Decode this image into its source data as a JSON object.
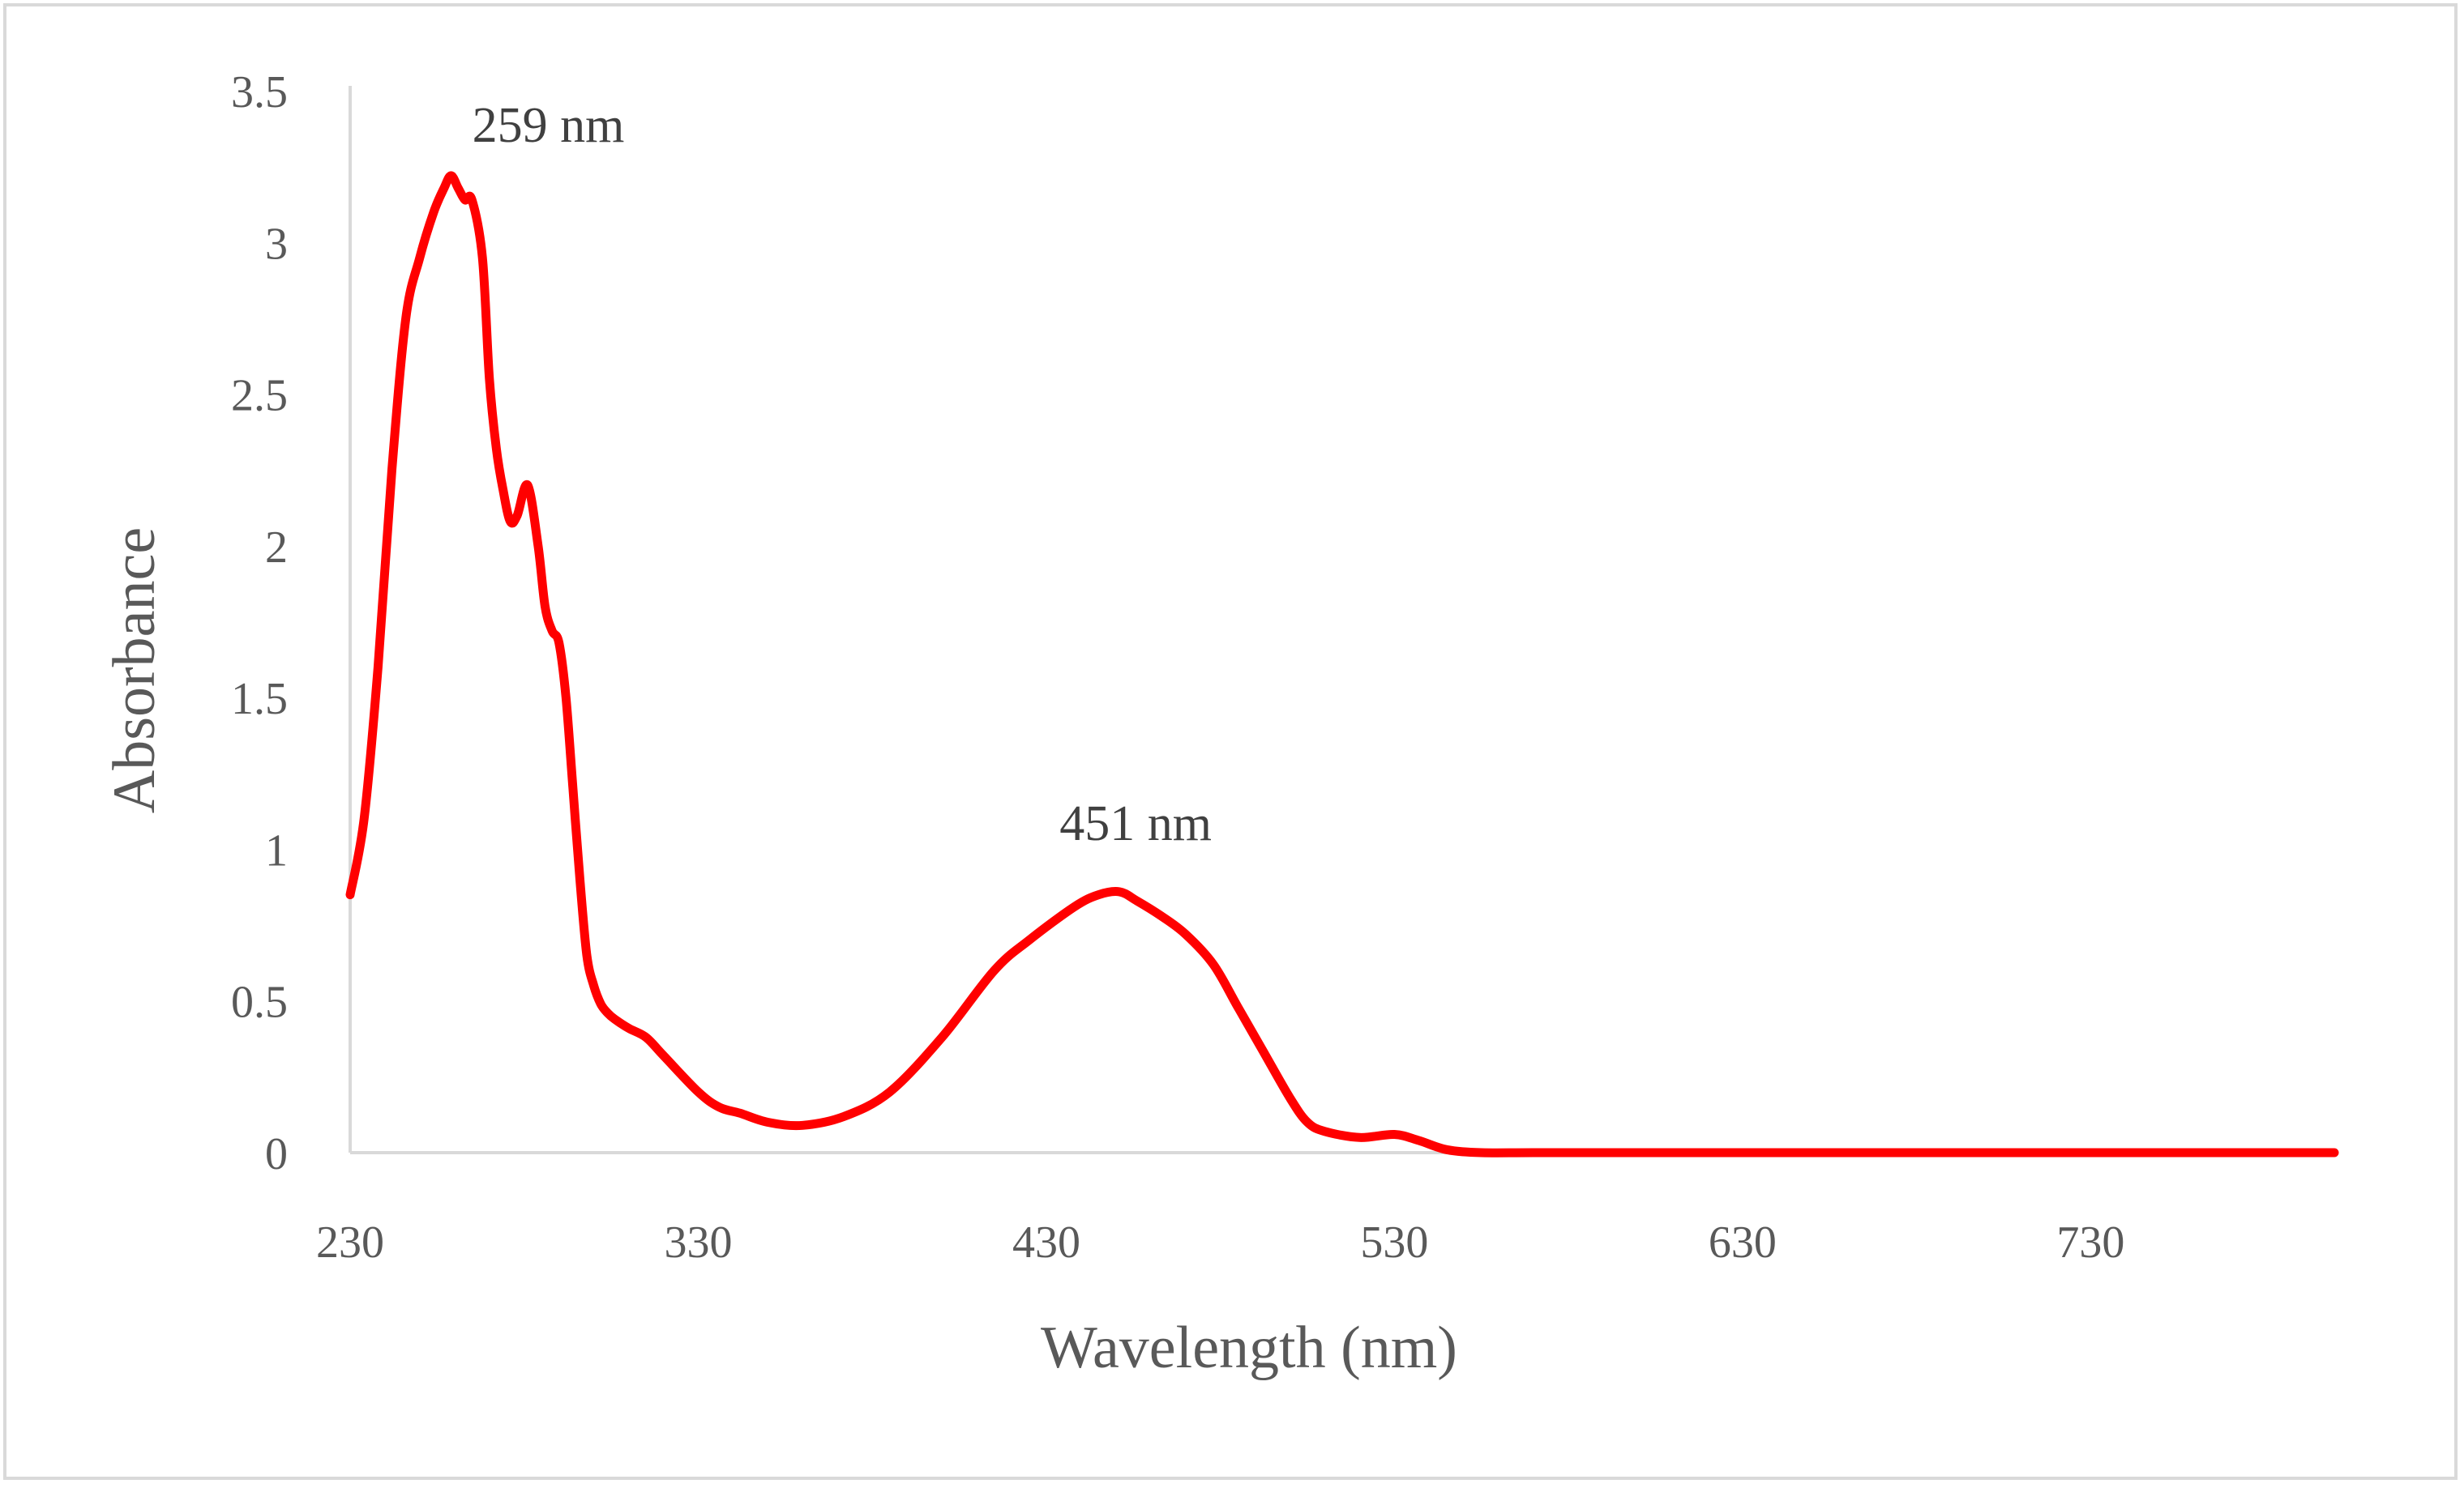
{
  "chart_data": {
    "type": "line",
    "title": "",
    "xlabel": "Wavelength (nm)",
    "ylabel": "Absorbance",
    "xlim": [
      230,
      800
    ],
    "ylim": [
      0,
      3.5
    ],
    "x_ticks": [
      "230",
      "330",
      "430",
      "530",
      "630",
      "730"
    ],
    "y_ticks": [
      "0",
      "0.5",
      "1",
      "1.5",
      "2",
      "2.5",
      "3",
      "3.5"
    ],
    "grid": false,
    "series": [
      {
        "name": "Absorbance",
        "color": "#ff0000",
        "x": [
          230,
          234,
          238,
          242,
          246,
          250,
          254,
          257,
          259,
          261,
          263,
          265,
          268,
          270,
          272,
          274,
          276,
          278,
          281,
          284,
          286,
          288,
          290,
          292,
          294,
          296,
          298,
          300,
          302,
          304,
          306,
          310,
          315,
          320,
          330,
          336,
          342,
          350,
          360,
          372,
          385,
          400,
          415,
          425,
          438,
          445,
          451,
          456,
          463,
          470,
          478,
          485,
          492,
          500,
          505,
          510,
          520,
          530,
          537,
          545,
          555,
          570,
          600,
          650,
          700,
          750,
          800
        ],
        "y": [
          0.85,
          1.1,
          1.6,
          2.25,
          2.75,
          2.95,
          3.1,
          3.18,
          3.22,
          3.18,
          3.14,
          3.14,
          2.95,
          2.55,
          2.32,
          2.18,
          2.08,
          2.1,
          2.2,
          2.0,
          1.8,
          1.72,
          1.68,
          1.5,
          1.2,
          0.9,
          0.65,
          0.55,
          0.49,
          0.46,
          0.44,
          0.41,
          0.38,
          0.32,
          0.2,
          0.15,
          0.13,
          0.1,
          0.09,
          0.12,
          0.2,
          0.38,
          0.6,
          0.7,
          0.81,
          0.85,
          0.86,
          0.83,
          0.78,
          0.72,
          0.62,
          0.48,
          0.34,
          0.18,
          0.1,
          0.07,
          0.05,
          0.06,
          0.04,
          0.01,
          0.0,
          0.0,
          0.0,
          0.0,
          0.0,
          0.0,
          0.0
        ]
      }
    ],
    "annotations": [
      {
        "text": "259 nm",
        "x": 259,
        "y": 3.22
      },
      {
        "text": "451 nm",
        "x": 451,
        "y": 0.86
      }
    ]
  }
}
